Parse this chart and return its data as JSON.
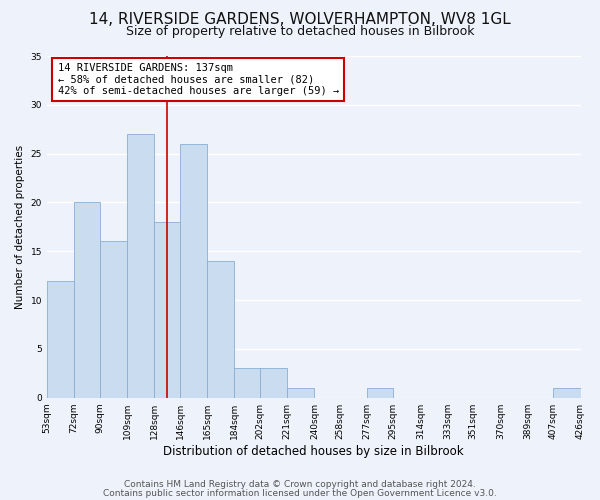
{
  "title": "14, RIVERSIDE GARDENS, WOLVERHAMPTON, WV8 1GL",
  "subtitle": "Size of property relative to detached houses in Bilbrook",
  "xlabel": "Distribution of detached houses by size in Bilbrook",
  "ylabel": "Number of detached properties",
  "bin_edges": [
    53,
    72,
    90,
    109,
    128,
    146,
    165,
    184,
    202,
    221,
    240,
    258,
    277,
    295,
    314,
    333,
    351,
    370,
    389,
    407,
    426
  ],
  "bin_labels": [
    "53sqm",
    "72sqm",
    "90sqm",
    "109sqm",
    "128sqm",
    "146sqm",
    "165sqm",
    "184sqm",
    "202sqm",
    "221sqm",
    "240sqm",
    "258sqm",
    "277sqm",
    "295sqm",
    "314sqm",
    "333sqm",
    "351sqm",
    "370sqm",
    "389sqm",
    "407sqm",
    "426sqm"
  ],
  "counts": [
    12,
    20,
    16,
    27,
    18,
    26,
    14,
    3,
    3,
    1,
    0,
    0,
    1,
    0,
    0,
    0,
    0,
    0,
    0,
    1
  ],
  "bar_color": "#c9dcf0",
  "bar_edge_color": "#88aed4",
  "property_value": 137,
  "marker_line_color": "#cc0000",
  "ylim": [
    0,
    35
  ],
  "yticks": [
    0,
    5,
    10,
    15,
    20,
    25,
    30,
    35
  ],
  "annotation_title": "14 RIVERSIDE GARDENS: 137sqm",
  "annotation_line1": "← 58% of detached houses are smaller (82)",
  "annotation_line2": "42% of semi-detached houses are larger (59) →",
  "annotation_box_color": "#ffffff",
  "annotation_box_edge_color": "#cc0000",
  "footer_line1": "Contains HM Land Registry data © Crown copyright and database right 2024.",
  "footer_line2": "Contains public sector information licensed under the Open Government Licence v3.0.",
  "background_color": "#eef2fa",
  "plot_bg_color": "#eef2fa",
  "grid_color": "#ffffff",
  "title_fontsize": 11,
  "subtitle_fontsize": 9,
  "annotation_fontsize": 7.5,
  "footer_fontsize": 6.5,
  "tick_fontsize": 6.5,
  "ylabel_fontsize": 7.5,
  "xlabel_fontsize": 8.5
}
